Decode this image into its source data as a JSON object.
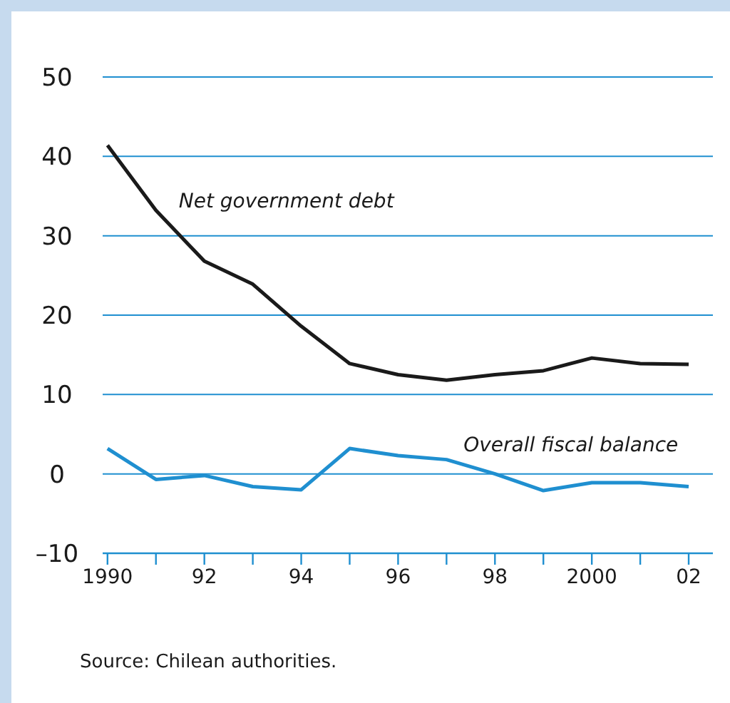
{
  "chart_data": {
    "type": "line",
    "x": [
      1990,
      1991,
      1992,
      1993,
      1994,
      1995,
      1996,
      1997,
      1998,
      1999,
      2000,
      2001,
      2002
    ],
    "series": [
      {
        "name": "Net government debt",
        "color": "#1a1a1a",
        "values": [
          41.4,
          33.2,
          26.8,
          23.9,
          18.6,
          13.9,
          12.5,
          11.8,
          12.5,
          13,
          14.6,
          13.9,
          13.8
        ]
      },
      {
        "name": "Overall fiscal balance",
        "color": "#1f8fd0",
        "values": [
          3.2,
          -0.7,
          -0.2,
          -1.6,
          -2,
          3.2,
          2.3,
          1.8,
          0,
          -2.1,
          -1.1,
          -1.1,
          -1.6
        ]
      }
    ],
    "xlim": [
      1989.9,
      2002.5
    ],
    "xticks": [
      {
        "value": 1990,
        "label": "1990"
      },
      {
        "value": 1991,
        "label": null
      },
      {
        "value": 1992,
        "label": "92"
      },
      {
        "value": 1993,
        "label": null
      },
      {
        "value": 1994,
        "label": "94"
      },
      {
        "value": 1995,
        "label": null
      },
      {
        "value": 1996,
        "label": "96"
      },
      {
        "value": 1997,
        "label": null
      },
      {
        "value": 1998,
        "label": "98"
      },
      {
        "value": 1999,
        "label": null
      },
      {
        "value": 2000,
        "label": "2000"
      },
      {
        "value": 2001,
        "label": null
      },
      {
        "value": 2002,
        "label": "02"
      }
    ],
    "ylim": [
      -10,
      50
    ],
    "yticks": [
      {
        "value": -10,
        "label": "–10"
      },
      0,
      10,
      20,
      30,
      40,
      50
    ],
    "grid": "y",
    "marker": "none",
    "line_style": "solid",
    "annotations": [
      "Source: Chilean authorities."
    ]
  }
}
